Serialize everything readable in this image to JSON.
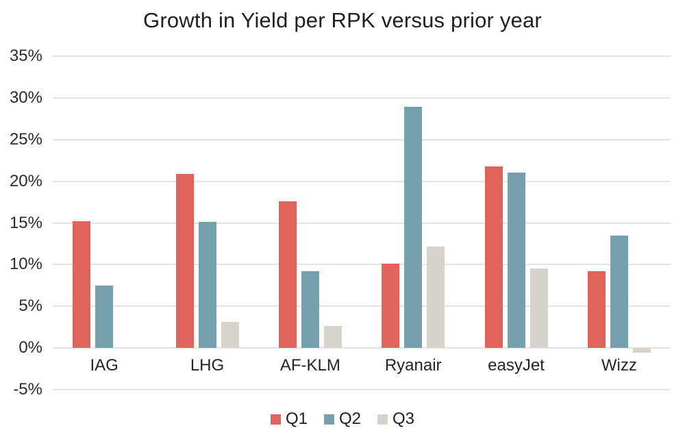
{
  "title": "Growth in Yield per RPK versus prior year",
  "colors": {
    "q1": "#e0635c",
    "q2": "#74a1ad",
    "q3": "#d8d3ca",
    "gridline": "#e3e3e3",
    "title_text": "#1f1f1f",
    "tick_text": "#2b2b2b"
  },
  "chart_data": {
    "type": "bar",
    "title": "Growth in Yield per RPK versus prior year",
    "categories": [
      "IAG",
      "LHG",
      "AF-KLM",
      "Ryanair",
      "easyJet",
      "Wizz"
    ],
    "series": [
      {
        "name": "Q1",
        "color": "#e0635c",
        "values": [
          15.2,
          20.9,
          17.6,
          10.1,
          21.8,
          9.2
        ]
      },
      {
        "name": "Q2",
        "color": "#74a1ad",
        "values": [
          7.5,
          15.1,
          9.2,
          28.9,
          21.0,
          13.5
        ]
      },
      {
        "name": "Q3",
        "color": "#d8d3ca",
        "values": [
          0,
          3.1,
          2.6,
          12.2,
          9.5,
          -0.6
        ]
      }
    ],
    "xlabel": "",
    "ylabel": "",
    "ylim": [
      -5,
      35
    ],
    "ytick_step": 5,
    "ytick_labels": [
      "35%",
      "30%",
      "25%",
      "20%",
      "15%",
      "10%",
      "5%",
      "0%",
      "-5%"
    ],
    "ytick_format": "percent",
    "grid": "horizontal",
    "legend_position": "bottom"
  },
  "legend": {
    "items": [
      {
        "label": "Q1",
        "color": "#e0635c"
      },
      {
        "label": "Q2",
        "color": "#74a1ad"
      },
      {
        "label": "Q3",
        "color": "#d8d3ca"
      }
    ]
  }
}
